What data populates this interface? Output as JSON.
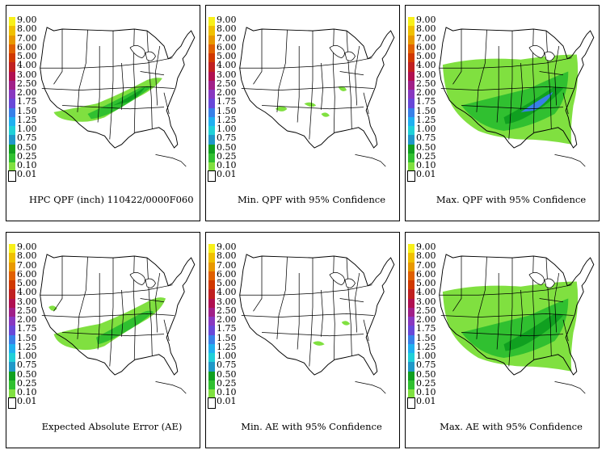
{
  "legend": {
    "levels": [
      "9.00",
      "8.00",
      "7.00",
      "6.00",
      "5.00",
      "4.00",
      "3.00",
      "2.50",
      "2.00",
      "1.75",
      "1.50",
      "1.25",
      "1.00",
      "0.75",
      "0.50",
      "0.25",
      "0.10",
      "0.01"
    ],
    "colors": [
      "#f8f01a",
      "#f0c000",
      "#e89800",
      "#e06000",
      "#d03800",
      "#c02020",
      "#b01050",
      "#a02088",
      "#8838c0",
      "#6848d8",
      "#3880e8",
      "#20b0f0",
      "#20d0d8",
      "#2098c8",
      "#10a020",
      "#30c030",
      "#80e040",
      "#ffffff"
    ]
  },
  "panels": [
    {
      "caption": "HPC QPF (inch) 110422/0000F060",
      "field": "hpc_qpf"
    },
    {
      "caption": "Min. QPF with 95% Confidence",
      "field": "min_qpf"
    },
    {
      "caption": "Max. QPF with 95% Confidence",
      "field": "max_qpf"
    },
    {
      "caption": "Expected Absolute Error (AE)",
      "field": "expected_ae"
    },
    {
      "caption": "Min. AE with 95% Confidence",
      "field": "min_ae"
    },
    {
      "caption": "Max. AE with 95% Confidence",
      "field": "max_ae"
    }
  ],
  "colors": {
    "border": "#000000",
    "background": "#ffffff"
  }
}
